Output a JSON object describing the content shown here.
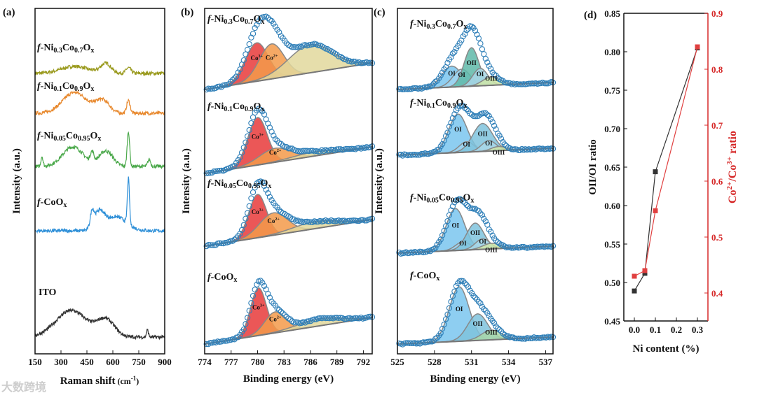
{
  "chart_data": [
    {
      "panel": "(a)",
      "type": "line",
      "xlabel": "Raman shift (cm-1)",
      "xlabel_main": "Raman shift",
      "xlabel_unit": "(cm",
      "xlabel_sup": "-1",
      "xlabel_close": ")",
      "ylabel": "Intensity (a.u.)",
      "xlim": [
        150,
        900
      ],
      "xticks": [
        150,
        300,
        450,
        600,
        750,
        900
      ],
      "series": [
        {
          "name": "f-Ni0.3Co0.7Ox",
          "label": [
            [
              "f",
              "i"
            ],
            [
              "-Ni",
              ""
            ],
            [
              "0.3",
              "s"
            ],
            [
              "Co",
              ""
            ],
            [
              "0.7",
              "s"
            ],
            [
              "O",
              ""
            ],
            [
              "x",
              "s"
            ]
          ],
          "color": "#9a9a1e",
          "offset": 105,
          "peaks": [
            [
              380,
              80,
              10
            ],
            [
              560,
              30,
              14
            ],
            [
              690,
              15,
              8
            ]
          ]
        },
        {
          "name": "f-Ni0.1Co0.9Ox",
          "label": [
            [
              "f",
              "i"
            ],
            [
              "-Ni",
              ""
            ],
            [
              "0.1",
              "s"
            ],
            [
              "Co",
              ""
            ],
            [
              "0.9",
              "s"
            ],
            [
              "O",
              ""
            ],
            [
              "x",
              "s"
            ]
          ],
          "color": "#e8892e",
          "offset": 162,
          "peaks": [
            [
              380,
              70,
              30
            ],
            [
              540,
              40,
              18
            ],
            [
              690,
              10,
              18
            ]
          ]
        },
        {
          "name": "f-Ni0.05Co0.95Ox",
          "label": [
            [
              "f",
              "i"
            ],
            [
              "-Ni",
              ""
            ],
            [
              "0.05",
              "s"
            ],
            [
              "Co",
              ""
            ],
            [
              "0.95",
              "s"
            ],
            [
              "O",
              ""
            ],
            [
              "x",
              "s"
            ]
          ],
          "color": "#4aa84a",
          "offset": 238,
          "peaks": [
            [
              190,
              6,
              14
            ],
            [
              370,
              60,
              28
            ],
            [
              480,
              10,
              14
            ],
            [
              560,
              40,
              22
            ],
            [
              690,
              7,
              50
            ],
            [
              810,
              8,
              10
            ]
          ]
        },
        {
          "name": "f-CoOx",
          "label": [
            [
              "f",
              "i"
            ],
            [
              "-CoO",
              ""
            ],
            [
              "x",
              "s"
            ]
          ],
          "color": "#2f90d8",
          "offset": 330,
          "peaks": [
            [
              480,
              10,
              20
            ],
            [
              520,
              30,
              25
            ],
            [
              620,
              60,
              20
            ],
            [
              690,
              6,
              65
            ]
          ]
        },
        {
          "name": "ITO",
          "label": [
            [
              "ITO",
              ""
            ]
          ],
          "color": "#333333",
          "offset": 482,
          "peaks": [
            [
              360,
              90,
              38
            ],
            [
              560,
              50,
              24
            ],
            [
              800,
              6,
              10
            ]
          ]
        }
      ]
    },
    {
      "panel": "(b)",
      "type": "line",
      "xlabel": "Binding energy (eV)",
      "ylabel": "Intensity (a.u.)",
      "xlim": [
        774,
        793
      ],
      "xticks": [
        774,
        777,
        780,
        783,
        786,
        789,
        792
      ],
      "series": [
        {
          "name": "f-Ni0.3Co0.7Ox",
          "label": [
            [
              "f",
              "i"
            ],
            [
              "-Ni",
              ""
            ],
            [
              "0.3",
              "s"
            ],
            [
              "Co",
              ""
            ],
            [
              "0.7",
              "s"
            ],
            [
              "O",
              ""
            ],
            [
              "x",
              "s"
            ]
          ],
          "base": 128,
          "peaks": [
            {
              "name": "Co3+",
              "c": 779.9,
              "w": 1.3,
              "h": 55,
              "color": "#e8393a"
            },
            {
              "name": "Co2+",
              "c": 781.6,
              "w": 1.4,
              "h": 50,
              "color": "#f39a4a"
            },
            {
              "name": "sat",
              "c": 786.0,
              "w": 2.5,
              "h": 40,
              "color": "#e2d89c"
            }
          ],
          "labels": [
            [
              "Co3+",
              -4
            ],
            [
              "Co2+",
              0
            ]
          ]
        },
        {
          "name": "f-Ni0.1Co0.9Ox",
          "label": [
            [
              "f",
              "i"
            ],
            [
              "-Ni",
              ""
            ],
            [
              "0.1",
              "s"
            ],
            [
              "Co",
              ""
            ],
            [
              "0.9",
              "s"
            ],
            [
              "O",
              ""
            ],
            [
              "x",
              "s"
            ]
          ],
          "base": 248,
          "peaks": [
            {
              "name": "Co3+",
              "c": 780.0,
              "w": 1.1,
              "h": 68,
              "color": "#e8393a"
            },
            {
              "name": "Co2+",
              "c": 782.0,
              "w": 1.8,
              "h": 20,
              "color": "#f39a4a"
            },
            {
              "name": "sat",
              "c": 786.5,
              "w": 2.5,
              "h": 6,
              "color": "#e2d89c"
            }
          ],
          "labels": [
            [
              "Co3+",
              0
            ],
            [
              "Co2+",
              0
            ]
          ]
        },
        {
          "name": "f-Ni0.05Co0.95Ox",
          "label": [
            [
              "f",
              "i"
            ],
            [
              "-Ni",
              ""
            ],
            [
              "0.05",
              "s"
            ],
            [
              "Co",
              ""
            ],
            [
              "0.95",
              "s"
            ],
            [
              "O",
              ""
            ],
            [
              "x",
              "s"
            ]
          ],
          "base": 352,
          "peaks": [
            {
              "name": "Co3+",
              "c": 780.0,
              "w": 1.0,
              "h": 62,
              "color": "#e8393a"
            },
            {
              "name": "Co2+",
              "c": 781.8,
              "w": 1.6,
              "h": 32,
              "color": "#f39a4a"
            },
            {
              "name": "sat",
              "c": 786.5,
              "w": 2.5,
              "h": 10,
              "color": "#e2d89c"
            }
          ],
          "labels": [
            [
              "Co3+",
              0
            ],
            [
              "Co2+",
              0
            ]
          ]
        },
        {
          "name": "f-CoOx",
          "label": [
            [
              "f",
              "i"
            ],
            [
              "-CoO",
              ""
            ],
            [
              "x",
              "s"
            ]
          ],
          "base": 492,
          "peaks": [
            {
              "name": "Co3+",
              "c": 780.1,
              "w": 0.9,
              "h": 68,
              "color": "#e8393a"
            },
            {
              "name": "Co2+",
              "c": 782.0,
              "w": 1.2,
              "h": 30,
              "color": "#f39a4a"
            },
            {
              "name": "sat",
              "c": 787,
              "w": 2.5,
              "h": 10,
              "color": "#e2d89c"
            }
          ],
          "labels": [
            [
              "Co3+",
              0
            ],
            [
              "Co2+",
              0
            ]
          ]
        }
      ]
    },
    {
      "panel": "(c)",
      "type": "line",
      "xlabel": "Binding energy (eV)",
      "ylabel": "Intensity (a.u.)",
      "xlim": [
        525,
        537.6
      ],
      "xticks": [
        525,
        528,
        531,
        534,
        537
      ],
      "series": [
        {
          "name": "f-Ni0.3Co0.7Ox",
          "label": [
            [
              "f",
              "i"
            ],
            [
              "-Ni",
              ""
            ],
            [
              "0.3",
              "s"
            ],
            [
              "Co",
              ""
            ],
            [
              "0.7",
              "s"
            ],
            [
              "O",
              ""
            ],
            [
              "x",
              "s"
            ]
          ],
          "base": 128,
          "peaks": [
            {
              "name": "OI",
              "c": 529.4,
              "w": 0.8,
              "h": 30,
              "color": "#7ac6ee"
            },
            {
              "name": "OI",
              "c": 530.2,
              "w": 0.7,
              "h": 25,
              "color": "#9fd4f0"
            },
            {
              "name": "OII",
              "c": 531.0,
              "w": 0.6,
              "h": 55,
              "color": "#5fb8a8"
            },
            {
              "name": "OI",
              "c": 531.7,
              "w": 0.6,
              "h": 25,
              "color": "#a9d7e8"
            },
            {
              "name": "OIII",
              "c": 532.6,
              "w": 0.7,
              "h": 12,
              "color": "#cfe6a8"
            }
          ]
        },
        {
          "name": "f-Ni0.1Co0.9Ox",
          "label": [
            [
              "f",
              "i"
            ],
            [
              "-Ni",
              ""
            ],
            [
              "0.1",
              "s"
            ],
            [
              "Co",
              ""
            ],
            [
              "0.9",
              "s"
            ],
            [
              "O",
              ""
            ],
            [
              "x",
              "s"
            ]
          ],
          "base": 222,
          "peaks": [
            {
              "name": "OI",
              "c": 529.9,
              "w": 0.75,
              "h": 55,
              "color": "#7ac6ee"
            },
            {
              "name": "OI",
              "c": 530.6,
              "w": 0.6,
              "h": 15,
              "color": "#9fd4f0"
            },
            {
              "name": "OII",
              "c": 531.9,
              "w": 0.8,
              "h": 40,
              "color": "#7fc3dd"
            },
            {
              "name": "OI",
              "c": 532.4,
              "w": 0.6,
              "h": 15,
              "color": "#a9d7e8"
            },
            {
              "name": "OIII",
              "c": 533.2,
              "w": 0.6,
              "h": 6,
              "color": "#cfe6a8"
            }
          ]
        },
        {
          "name": "f-Ni0.05Co0.95Ox",
          "label": [
            [
              "f",
              "i"
            ],
            [
              "-Ni",
              ""
            ],
            [
              "0.05",
              "s"
            ],
            [
              "Co",
              ""
            ],
            [
              "0.95",
              "s"
            ],
            [
              "O",
              ""
            ],
            [
              "x",
              "s"
            ]
          ],
          "base": 362,
          "peaks": [
            {
              "name": "OI",
              "c": 529.7,
              "w": 0.75,
              "h": 60,
              "color": "#7ac6ee"
            },
            {
              "name": "OI",
              "c": 530.3,
              "w": 0.6,
              "h": 12,
              "color": "#9fd4f0"
            },
            {
              "name": "OII",
              "c": 531.3,
              "w": 0.7,
              "h": 38,
              "color": "#7fc3dd"
            },
            {
              "name": "OI",
              "c": 531.9,
              "w": 0.6,
              "h": 15,
              "color": "#a9d7e8"
            },
            {
              "name": "OIII",
              "c": 532.6,
              "w": 0.7,
              "h": 8,
              "color": "#cfe6a8"
            }
          ]
        },
        {
          "name": "f-CoOx",
          "label": [
            [
              "f",
              "i"
            ],
            [
              "-CoO",
              ""
            ],
            [
              "x",
              "s"
            ]
          ],
          "base": 492,
          "peaks": [
            {
              "name": "OI",
              "c": 530.0,
              "w": 0.8,
              "h": 78,
              "color": "#7ac6ee"
            },
            {
              "name": "OII",
              "c": 531.5,
              "w": 0.8,
              "h": 38,
              "color": "#7fc3dd"
            },
            {
              "name": "OIII",
              "c": 532.6,
              "w": 0.8,
              "h": 14,
              "color": "#a9d7a8"
            }
          ]
        }
      ]
    },
    {
      "panel": "(d)",
      "type": "line",
      "xlabel": "Ni content (%)",
      "ylabel": "OII/OI ratio",
      "ylabel_right": "Co2+/Co3+ ratio",
      "ylabel_right_parts": [
        "Co",
        "2+",
        "/Co",
        "3+",
        " ratio"
      ],
      "xlim": [
        -0.05,
        0.35
      ],
      "ylim": [
        0.45,
        0.85
      ],
      "ylim_right": [
        0.35,
        0.9
      ],
      "xticks": [
        "0.0",
        "0.1",
        "0.2",
        "0.3"
      ],
      "yticks": [
        "0.45",
        "0.50",
        "0.55",
        "0.60",
        "0.65",
        "0.70",
        "0.75",
        "0.80",
        "0.85"
      ],
      "yticks_right": [
        "0.4",
        "0.5",
        "0.6",
        "0.7",
        "0.8",
        "0.9"
      ],
      "x": [
        0.0,
        0.05,
        0.1,
        0.3
      ],
      "series": [
        {
          "name": "OII/OI ratio",
          "axis": "left",
          "color": "#333333",
          "values": [
            0.489,
            0.512,
            0.644,
            0.805
          ]
        },
        {
          "name": "Co2+/Co3+ ratio",
          "axis": "right",
          "color": "#e04040",
          "values": [
            0.43,
            0.44,
            0.547,
            0.84
          ]
        }
      ]
    }
  ],
  "watermark": "大数跨境"
}
